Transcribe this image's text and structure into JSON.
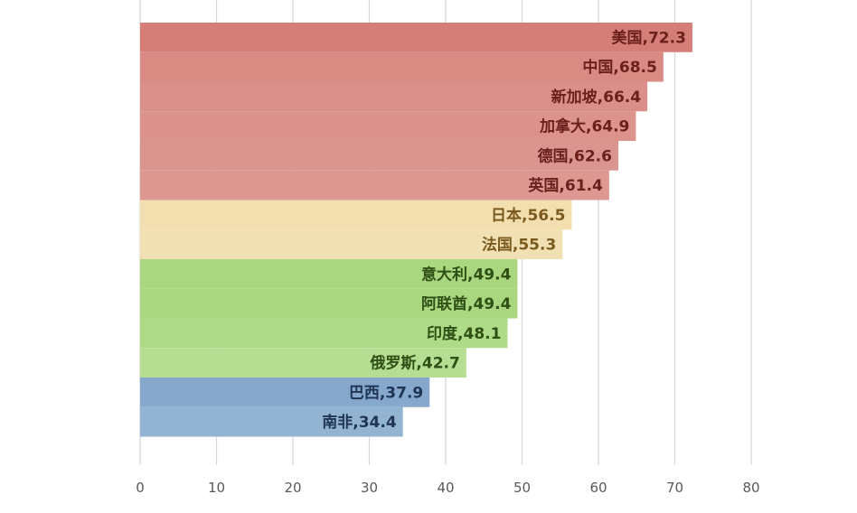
{
  "chart_data": {
    "type": "bar",
    "orientation": "horizontal",
    "categories": [
      "美国",
      "中国",
      "新加坡",
      "加拿大",
      "德国",
      "英国",
      "日本",
      "法国",
      "意大利",
      "阿联酋",
      "印度",
      "俄罗斯",
      "巴西",
      "南非"
    ],
    "values": [
      72.3,
      68.5,
      66.4,
      64.9,
      62.6,
      61.4,
      56.5,
      55.3,
      49.4,
      49.4,
      48.1,
      42.7,
      37.9,
      34.4
    ],
    "data_labels": [
      "美国,72.3",
      "中国,68.5",
      "新加坡,66.4",
      "加拿大,64.9",
      "德国,62.6",
      "英国,61.4",
      "日本,56.5",
      "法国,55.3",
      "意大利,49.4",
      "阿联酋,49.4",
      "印度,48.1",
      "俄罗斯,42.7",
      "巴西,37.9",
      "南非,34.4"
    ],
    "bar_colors": [
      "#d57e78",
      "#d88a83",
      "#da8f88",
      "#db938c",
      "#db958f",
      "#dc9891",
      "#f2deaf",
      "#f1e0b3",
      "#a8d77f",
      "#a9d780",
      "#aedb87",
      "#b5de92",
      "#85a8cc",
      "#93b3d3"
    ],
    "label_colors": [
      "#6b201c",
      "#6b201c",
      "#6b201c",
      "#6b201c",
      "#6b201c",
      "#6b201c",
      "#7a5a1e",
      "#7a5a1e",
      "#2f4f15",
      "#2f4f15",
      "#2f4f15",
      "#2f4f15",
      "#1f3555",
      "#1f3555"
    ],
    "xlim": [
      0,
      80
    ],
    "xticks": [
      "0",
      "10",
      "20",
      "30",
      "40",
      "50",
      "60",
      "70",
      "80"
    ],
    "title": "",
    "xlabel": "",
    "ylabel": "",
    "grid": "vertical",
    "legend": "none"
  }
}
